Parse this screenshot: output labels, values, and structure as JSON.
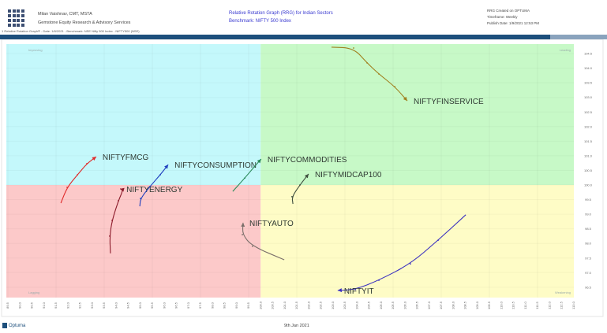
{
  "header": {
    "author": "Milan Vaishnav, CMT, MSTA",
    "company": "Gemstone Equity Research & Advisory Services",
    "title": "Relative Rotation Graph (RRG) for Indian Sectors",
    "benchmark": "Benchmark: NIFTY 500 Index",
    "created": "RRG Created on OPTUMA",
    "timeframe": "Timeframe: Weekly",
    "publish": "Publish Date: 1/9/2021 12:53 PM",
    "subtitle": "1 Relative Rotation Graph® - Date: 1/8/2021 - Benchmark: NSE Nifty 500 Index - NIFTY500 (NSE)"
  },
  "footer": {
    "brand": "Optuma",
    "date": "9th Jan 2021"
  },
  "colors": {
    "improving": "#c4f8fb",
    "leading": "#c7f9c7",
    "lagging": "#fcc9c9",
    "weakening": "#fefcc6",
    "title": "#3a3ad0",
    "bar": "#1d4f7c"
  },
  "chart_data": {
    "type": "scatter",
    "subtype": "relative-rotation-graph",
    "xlim": [
      89.5,
      113.0
    ],
    "ylim": [
      96.3,
      104.8
    ],
    "x_ticks": [
      89.5,
      90.0,
      90.5,
      91.0,
      91.5,
      92.0,
      92.5,
      93.0,
      93.5,
      94.0,
      94.5,
      95.0,
      95.5,
      96.0,
      96.5,
      97.0,
      97.5,
      98.0,
      98.5,
      99.0,
      99.5,
      100.0,
      100.5,
      101.0,
      101.5,
      102.0,
      102.5,
      103.0,
      103.5,
      104.0,
      104.5,
      105.0,
      105.5,
      106.0,
      106.5,
      107.0,
      107.5,
      108.0,
      108.5,
      109.0,
      109.5,
      110.0,
      110.5,
      111.0,
      111.5,
      112.0,
      112.5,
      113.0
    ],
    "y_ticks": [
      104.5,
      104.0,
      103.5,
      103.0,
      102.5,
      102.0,
      101.5,
      101.0,
      100.5,
      100.0,
      99.5,
      99.0,
      98.5,
      98.0,
      97.5,
      97.0,
      96.5
    ],
    "center": [
      100,
      100
    ],
    "quadrants": {
      "top_left": "Improving",
      "top_right": "Leading",
      "bottom_left": "Lagging",
      "bottom_right": "Weakening"
    },
    "grid": true,
    "series": [
      {
        "name": "NIFTYFMCG",
        "color": "#e02a2a",
        "x": [
          91.7,
          91.96,
          92.39,
          92.78,
          93.17
        ],
        "y": [
          99.38,
          99.92,
          100.35,
          100.73,
          100.97
        ]
      },
      {
        "name": "NIFTYENERGY",
        "color": "#8b1a2a",
        "x": [
          93.76,
          93.73,
          93.83,
          94.09,
          94.29,
          94.16
        ],
        "y": [
          97.66,
          98.25,
          98.79,
          99.46,
          99.84,
          99.87
        ]
      },
      {
        "name": "NIFTYCONSUMPTION",
        "color": "#1f3fbf",
        "x": [
          94.98,
          95.01,
          95.4,
          95.83,
          96.16
        ],
        "y": [
          99.27,
          99.54,
          99.95,
          100.35,
          100.7
        ]
      },
      {
        "name": "NIFTYCOMMODITIES",
        "color": "#2a8a5a",
        "x": [
          98.84,
          99.34,
          99.73,
          100.02
        ],
        "y": [
          99.78,
          100.24,
          100.62,
          100.89
        ]
      },
      {
        "name": "NIFTYMIDCAP100",
        "color": "#3d4d3d",
        "x": [
          101.34,
          101.3,
          101.63,
          101.99
        ],
        "y": [
          99.35,
          99.6,
          100.0,
          100.38
        ]
      },
      {
        "name": "NIFTYAUTO",
        "color": "#7a6f6a",
        "x": [
          100.98,
          99.66,
          99.24,
          99.27
        ],
        "y": [
          97.44,
          97.9,
          98.3,
          98.71
        ]
      },
      {
        "name": "NIFTYFINSERVICE",
        "color": "#a08020",
        "x": [
          102.94,
          103.86,
          104.42,
          104.91,
          105.57,
          106.09
        ],
        "y": [
          104.72,
          104.69,
          104.18,
          103.8,
          103.37,
          102.88
        ]
      },
      {
        "name": "NIFTYIT",
        "color": "#3a30c0",
        "x": [
          108.52,
          107.37,
          106.22,
          104.91,
          103.93,
          103.2
        ],
        "y": [
          98.98,
          98.11,
          97.3,
          96.74,
          96.42,
          96.39
        ]
      }
    ]
  }
}
